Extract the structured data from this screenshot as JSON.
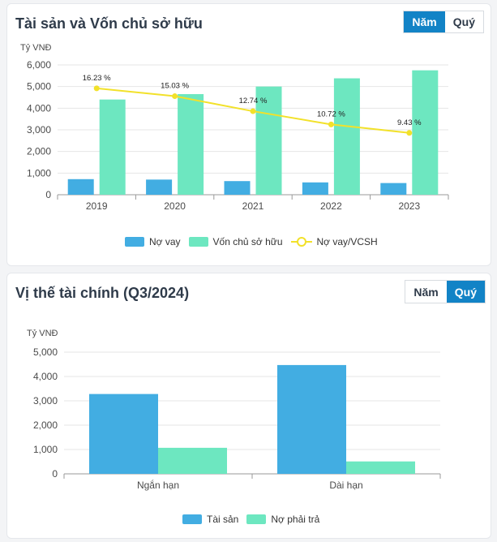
{
  "colors": {
    "blue": "#42ade2",
    "green": "#6de7c0",
    "yellow": "#f2e12a",
    "accent": "#1283c6"
  },
  "panel1": {
    "title": "Tài sản và Vốn chủ sở hữu",
    "toggle": {
      "nam": "Năm",
      "quy": "Quý",
      "active": "nam"
    },
    "unit": "Tỷ VNĐ",
    "legend": {
      "no_vay": "Nợ vay",
      "von_csh": "Vốn chủ sở hữu",
      "ratio": "Nợ vay/VCSH"
    }
  },
  "panel2": {
    "title": "Vị thế tài chính (Q3/2024)",
    "toggle": {
      "nam": "Năm",
      "quy": "Quý",
      "active": "quy"
    },
    "unit": "Tỷ VNĐ",
    "legend": {
      "tai_san": "Tài sản",
      "no_phai_tra": "Nợ phải trả"
    }
  },
  "chart_data": [
    {
      "type": "bar",
      "title": "Tài sản và Vốn chủ sở hữu",
      "ylabel": "Tỷ VNĐ",
      "ylim": [
        0,
        6000
      ],
      "yticks": [
        "0",
        "1,000",
        "2,000",
        "3,000",
        "4,000",
        "5,000",
        "6,000"
      ],
      "categories": [
        "2019",
        "2020",
        "2021",
        "2022",
        "2023"
      ],
      "series": [
        {
          "name": "Nợ vay",
          "values": [
            720,
            700,
            630,
            570,
            540
          ]
        },
        {
          "name": "Vốn chủ sở hữu",
          "values": [
            4400,
            4650,
            5000,
            5380,
            5750
          ]
        }
      ],
      "line": {
        "name": "Nợ vay/VCSH",
        "values": [
          16.23,
          15.03,
          12.74,
          10.72,
          9.43
        ],
        "labels": [
          "16.23 %",
          "15.03 %",
          "12.74 %",
          "10.72 %",
          "9.43 %"
        ]
      }
    },
    {
      "type": "bar",
      "title": "Vị thế tài chính (Q3/2024)",
      "ylabel": "Tỷ VNĐ",
      "ylim": [
        0,
        5000
      ],
      "yticks": [
        "0",
        "1,000",
        "2,000",
        "3,000",
        "4,000",
        "5,000"
      ],
      "categories": [
        "Ngắn hạn",
        "Dài hạn"
      ],
      "series": [
        {
          "name": "Tài sản",
          "values": [
            3280,
            4470
          ]
        },
        {
          "name": "Nợ phải trả",
          "values": [
            1070,
            510
          ]
        }
      ]
    }
  ]
}
